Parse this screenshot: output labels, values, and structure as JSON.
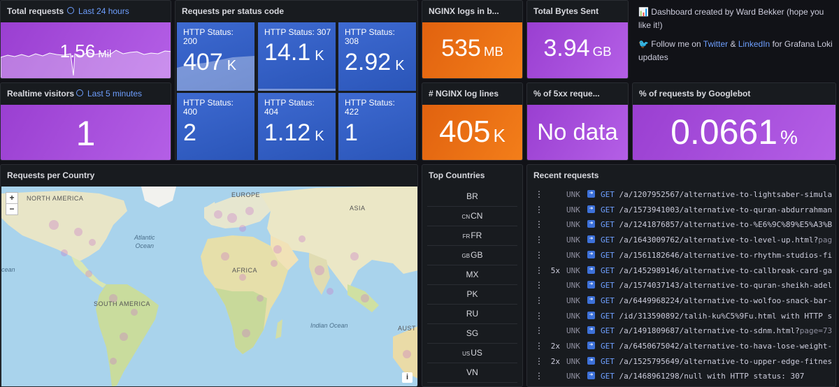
{
  "colors": {
    "purple": "#a64bdb",
    "orange": "#ea6c14",
    "blue": "#3560c4",
    "link": "#6e9fff",
    "panel_bg": "#181b1f"
  },
  "total_requests": {
    "title": "Total requests",
    "time": "Last 24 hours",
    "value": "1.56",
    "unit": "Mil"
  },
  "realtime": {
    "title": "Realtime visitors",
    "time": "Last 5 minutes",
    "value": "1"
  },
  "status": {
    "title": "Requests per status code",
    "items": [
      {
        "label": "HTTP Status: 200",
        "value": "407",
        "unit": "K"
      },
      {
        "label": "HTTP Status: 307",
        "value": "14.1",
        "unit": "K"
      },
      {
        "label": "HTTP Status: 308",
        "value": "2.92",
        "unit": "K"
      },
      {
        "label": "HTTP Status: 400",
        "value": "2",
        "unit": ""
      },
      {
        "label": "HTTP Status: 404",
        "value": "1.12",
        "unit": "K"
      },
      {
        "label": "HTTP Status: 422",
        "value": "1",
        "unit": ""
      }
    ]
  },
  "nginx_logs": {
    "title": "NGINX logs in b...",
    "value": "535",
    "unit": "MB"
  },
  "bytes_sent": {
    "title": "Total Bytes Sent",
    "value": "3.94",
    "unit": "GB"
  },
  "log_lines": {
    "title": "# NGINX log lines",
    "value": "405",
    "unit": "K"
  },
  "pct_5xx": {
    "title": "% of 5xx reque...",
    "value": "No data"
  },
  "googlebot": {
    "title": "% of requests by Googlebot",
    "value": "0.0661",
    "unit": "%"
  },
  "info": {
    "line1_icon": "📊",
    "line1": "Dashboard created by Ward Bekker (hope you like it!)",
    "line2_icon": "🐦",
    "line2_pre": "Follow me on",
    "twitter": "Twitter",
    "amp": "&",
    "linkedin": "LinkedIn",
    "line2_post": "for Grafana Loki updates"
  },
  "map": {
    "title": "Requests per Country",
    "zoom_in": "+",
    "zoom_out": "−",
    "info_btn": "i",
    "labels": {
      "north_america": "NORTH AMERICA",
      "europe": "EUROPE",
      "asia": "ASIA",
      "africa": "AFRICA",
      "south_america": "SOUTH AMERICA",
      "atlantic": "Atlantic",
      "atlantic2": "Ocean",
      "indian": "Indian Ocean",
      "aust": "AUST",
      "ocean_left": "cean"
    }
  },
  "top_countries": {
    "title": "Top Countries",
    "rows": [
      {
        "flag": "",
        "code": "BR"
      },
      {
        "flag": "CN",
        "code": "CN"
      },
      {
        "flag": "FR",
        "code": "FR"
      },
      {
        "flag": "GB",
        "code": "GB"
      },
      {
        "flag": "",
        "code": "MX"
      },
      {
        "flag": "",
        "code": "PK"
      },
      {
        "flag": "",
        "code": "RU"
      },
      {
        "flag": "",
        "code": "SG"
      },
      {
        "flag": "US",
        "code": "US"
      },
      {
        "flag": "",
        "code": "VN"
      }
    ]
  },
  "recent": {
    "title": "Recent requests",
    "rows": [
      {
        "count": "",
        "level": "UNK",
        "method": "GET",
        "path": "/a/1207952567/alternative-to-lightsaber-simula",
        "query": ""
      },
      {
        "count": "",
        "level": "UNK",
        "method": "GET",
        "path": "/a/1573941003/alternative-to-quran-abdurrahman",
        "query": ""
      },
      {
        "count": "",
        "level": "UNK",
        "method": "GET",
        "path": "/a/1241876857/alternative-to-%E6%9C%89%E5%A3%B",
        "query": ""
      },
      {
        "count": "",
        "level": "UNK",
        "method": "GET",
        "path": "/a/1643009762/alternative-to-level-up.html?",
        "query": "pag"
      },
      {
        "count": "",
        "level": "UNK",
        "method": "GET",
        "path": "/a/1561182646/alternative-to-rhythm-studios-fi",
        "query": ""
      },
      {
        "count": "5x",
        "level": "UNK",
        "method": "GET",
        "path": "/a/1452989146/alternative-to-callbreak-card-ga",
        "query": ""
      },
      {
        "count": "",
        "level": "UNK",
        "method": "GET",
        "path": "/a/1574037143/alternative-to-quran-sheikh-adel",
        "query": ""
      },
      {
        "count": "",
        "level": "UNK",
        "method": "GET",
        "path": "/a/6449968224/alternative-to-wolfoo-snack-bar-",
        "query": ""
      },
      {
        "count": "",
        "level": "UNK",
        "method": "GET",
        "path": "/id/313590892/talih-ku%C5%9Fu.html with HTTP s",
        "query": ""
      },
      {
        "count": "",
        "level": "UNK",
        "method": "GET",
        "path": "/a/1491809687/alternative-to-sdnm.html?",
        "query": "page=73"
      },
      {
        "count": "2x",
        "level": "UNK",
        "method": "GET",
        "path": "/a/6450675042/alternative-to-hava-lose-weight-",
        "query": ""
      },
      {
        "count": "2x",
        "level": "UNK",
        "method": "GET",
        "path": "/a/1525795649/alternative-to-upper-edge-fitnes",
        "query": ""
      },
      {
        "count": "",
        "level": "UNK",
        "method": "GET",
        "path": "/a/1468961298/null with HTTP status: 307",
        "query": ""
      }
    ]
  }
}
